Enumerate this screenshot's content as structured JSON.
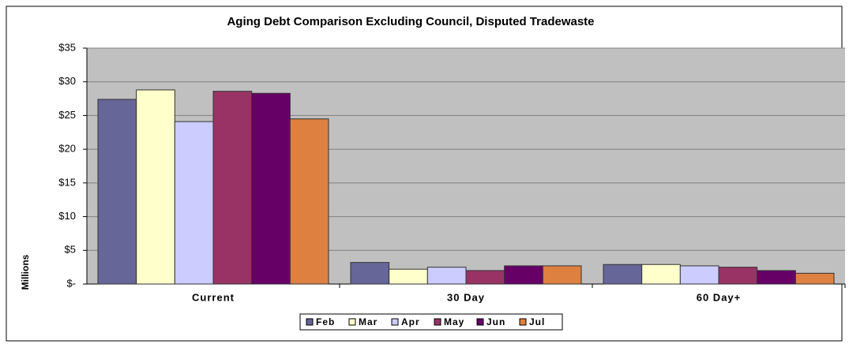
{
  "chart_data": {
    "type": "bar",
    "title": "Aging Debt Comparison Excluding Council, Disputed Tradewaste",
    "y_label": "Millions",
    "categories": [
      "Current",
      "30 Day",
      "60 Day+"
    ],
    "series": [
      {
        "name": "Feb",
        "color": "#666699",
        "values": [
          27.4,
          3.2,
          2.9
        ]
      },
      {
        "name": "Mar",
        "color": "#FFFFCC",
        "values": [
          28.8,
          2.2,
          2.9
        ]
      },
      {
        "name": "Apr",
        "color": "#CCCCFF",
        "values": [
          24.1,
          2.5,
          2.7
        ]
      },
      {
        "name": "May",
        "color": "#993366",
        "values": [
          28.6,
          2.0,
          2.5
        ]
      },
      {
        "name": "Jun",
        "color": "#660066",
        "values": [
          28.3,
          2.7,
          2.0
        ]
      },
      {
        "name": "Jul",
        "color": "#DD8040",
        "values": [
          24.5,
          2.7,
          1.6
        ]
      }
    ],
    "ylim": [
      0,
      35
    ],
    "yticks": [
      {
        "value": 0,
        "label": "$-"
      },
      {
        "value": 5,
        "label": "$5"
      },
      {
        "value": 10,
        "label": "$10"
      },
      {
        "value": 15,
        "label": "$15"
      },
      {
        "value": 20,
        "label": "$20"
      },
      {
        "value": 25,
        "label": "$25"
      },
      {
        "value": 30,
        "label": "$30"
      },
      {
        "value": 35,
        "label": "$35"
      }
    ],
    "grid": true,
    "legend": "bottom"
  }
}
